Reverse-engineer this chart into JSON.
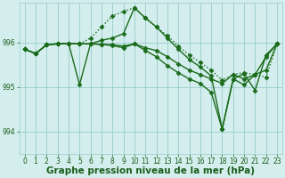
{
  "background_color": "#d4eeed",
  "grid_color": "#99cccc",
  "line_color": "#1a6b1a",
  "xlabel": "Graphe pression niveau de la mer (hPa)",
  "ylim": [
    993.5,
    996.9
  ],
  "yticks": [
    994,
    995,
    996
  ],
  "xlim": [
    -0.5,
    23.5
  ],
  "xticks": [
    0,
    1,
    2,
    3,
    4,
    5,
    6,
    7,
    8,
    9,
    10,
    11,
    12,
    13,
    14,
    15,
    16,
    17,
    18,
    19,
    20,
    21,
    22,
    23
  ],
  "series": [
    {
      "x": [
        0,
        1,
        2,
        3,
        4,
        5,
        6,
        7,
        8,
        9,
        10,
        11,
        12,
        13,
        14,
        15,
        16,
        17,
        18,
        19,
        20,
        21,
        22,
        23
      ],
      "y": [
        995.85,
        995.75,
        995.95,
        995.97,
        995.98,
        995.97,
        996.1,
        996.35,
        996.6,
        996.7,
        996.78,
        996.55,
        996.35,
        996.15,
        995.92,
        995.72,
        995.55,
        995.38,
        995.15,
        995.28,
        995.32,
        995.28,
        995.22,
        995.97
      ],
      "marker": "D",
      "markersize": 2.5,
      "linewidth": 1.0,
      "linestyle": ":"
    },
    {
      "x": [
        0,
        1,
        2,
        3,
        4,
        5,
        6,
        7,
        8,
        9,
        10,
        11,
        12,
        13,
        14,
        15,
        16,
        17,
        18,
        19,
        20,
        21,
        22,
        23
      ],
      "y": [
        995.85,
        995.75,
        995.95,
        995.97,
        995.98,
        995.05,
        995.97,
        996.05,
        996.1,
        996.2,
        996.78,
        996.55,
        996.35,
        996.1,
        995.85,
        995.62,
        995.45,
        995.25,
        994.05,
        995.18,
        995.3,
        994.92,
        995.72,
        995.97
      ],
      "marker": "D",
      "markersize": 2.5,
      "linewidth": 1.0,
      "linestyle": "-"
    },
    {
      "x": [
        0,
        1,
        2,
        3,
        4,
        5,
        6,
        7,
        8,
        9,
        10,
        11,
        12,
        13,
        14,
        15,
        16,
        17,
        18,
        19,
        20,
        21,
        22,
        23
      ],
      "y": [
        995.85,
        995.75,
        995.95,
        995.97,
        995.98,
        995.97,
        995.97,
        995.96,
        995.95,
        995.92,
        995.97,
        995.88,
        995.82,
        995.68,
        995.52,
        995.38,
        995.28,
        995.18,
        995.08,
        995.28,
        995.18,
        995.28,
        995.38,
        995.97
      ],
      "marker": "D",
      "markersize": 2.5,
      "linewidth": 1.0,
      "linestyle": "-"
    },
    {
      "x": [
        0,
        1,
        2,
        3,
        4,
        5,
        6,
        7,
        8,
        9,
        10,
        11,
        12,
        13,
        14,
        15,
        16,
        17,
        18,
        19,
        20,
        21,
        22,
        23
      ],
      "y": [
        995.85,
        995.75,
        995.95,
        995.97,
        995.98,
        995.97,
        995.97,
        995.96,
        995.93,
        995.88,
        995.97,
        995.82,
        995.68,
        995.48,
        995.32,
        995.18,
        995.08,
        994.88,
        994.05,
        995.18,
        995.05,
        995.28,
        995.68,
        995.97
      ],
      "marker": "D",
      "markersize": 2.5,
      "linewidth": 1.0,
      "linestyle": "-"
    }
  ],
  "tick_fontsize": 5.5,
  "xlabel_fontsize": 7.5,
  "tick_color": "#1a5c1a",
  "xlabel_color": "#1a5c1a",
  "xlabel_fontweight": "bold"
}
